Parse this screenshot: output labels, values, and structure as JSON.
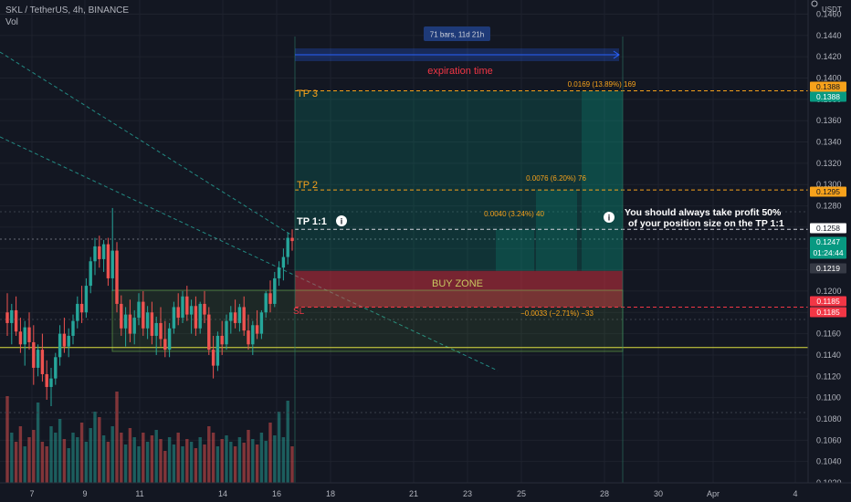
{
  "header": {
    "symbol_line": "SKL / TetherUS, 4h, BINANCE",
    "volume_label": "Vol"
  },
  "price_axis": {
    "currency": "USDT",
    "ticks": [
      "0.1460",
      "0.1440",
      "0.1420",
      "0.1400",
      "0.1380",
      "0.1360",
      "0.1340",
      "0.1320",
      "0.1300",
      "0.1280",
      "0.1260",
      "0.1240",
      "0.1220",
      "0.1200",
      "0.1180",
      "0.1160",
      "0.1140",
      "0.1120",
      "0.1100",
      "0.1080",
      "0.1060",
      "0.1040",
      "0.1020"
    ]
  },
  "price_badges": [
    {
      "value": "0.1388",
      "bg": "#f7a21b",
      "fg": "#131722"
    },
    {
      "value": "0.1388",
      "bg": "#089981",
      "fg": "#ffffff"
    },
    {
      "value": "0.1295",
      "bg": "#f7a21b",
      "fg": "#131722"
    },
    {
      "value": "0.1258",
      "bg": "#ffffff",
      "fg": "#131722"
    },
    {
      "value": "0.1247",
      "sub": "01:24:44",
      "bg": "#089981",
      "fg": "#ffffff"
    },
    {
      "value": "0.1219",
      "bg": "#363a45",
      "fg": "#ffffff"
    },
    {
      "value": "0.1185",
      "bg": "#f23645",
      "fg": "#ffffff"
    },
    {
      "value": "0.1185",
      "bg": "#f23645",
      "fg": "#ffffff"
    }
  ],
  "time_axis": {
    "labels": [
      "7",
      "9",
      "11",
      "14",
      "16",
      "18",
      "21",
      "23",
      "25",
      "28",
      "30",
      "Apr",
      "4"
    ]
  },
  "annotations": {
    "range_label": "71 bars, 11d 21h",
    "expiration": "expiration time",
    "tp3": "TP 3",
    "tp2": "TP 2",
    "tp11": "TP 1:1",
    "buy_zone": "BUY ZONE",
    "sl": "SL",
    "tp3_stat": "0.0169 (13.89%) 169",
    "tp2_stat": "0.0076 (6.20%) 76",
    "tp1_stat": "0.0040 (3.24%) 40",
    "sl_stat": "−0.0033 (−2.71%) −33",
    "note_line1": "You should always take profit 50%",
    "note_line2": "of your position size on the TP 1:1"
  },
  "colors": {
    "up": "#26a69a",
    "down": "#ef5350",
    "accent": "#f7a21b",
    "bg": "#131722"
  },
  "chart_data": {
    "type": "candlestick",
    "instrument": "SKL / TetherUS",
    "timeframe": "4h",
    "exchange": "BINANCE",
    "ylim": [
      0.1005,
      0.1475
    ],
    "candles": [
      {
        "o": 0.118,
        "h": 0.1198,
        "l": 0.1158,
        "c": 0.117
      },
      {
        "o": 0.117,
        "h": 0.1188,
        "l": 0.115,
        "c": 0.1182
      },
      {
        "o": 0.1182,
        "h": 0.1195,
        "l": 0.1158,
        "c": 0.1162
      },
      {
        "o": 0.1162,
        "h": 0.1175,
        "l": 0.1142,
        "c": 0.115
      },
      {
        "o": 0.115,
        "h": 0.1172,
        "l": 0.113,
        "c": 0.1166
      },
      {
        "o": 0.1166,
        "h": 0.118,
        "l": 0.1145,
        "c": 0.1152
      },
      {
        "o": 0.1152,
        "h": 0.1168,
        "l": 0.1112,
        "c": 0.1128
      },
      {
        "o": 0.1128,
        "h": 0.115,
        "l": 0.112,
        "c": 0.1145
      },
      {
        "o": 0.1145,
        "h": 0.116,
        "l": 0.1115,
        "c": 0.1122
      },
      {
        "o": 0.1122,
        "h": 0.1135,
        "l": 0.1098,
        "c": 0.111
      },
      {
        "o": 0.111,
        "h": 0.1128,
        "l": 0.1092,
        "c": 0.1118
      },
      {
        "o": 0.1118,
        "h": 0.1142,
        "l": 0.1112,
        "c": 0.1138
      },
      {
        "o": 0.1138,
        "h": 0.1168,
        "l": 0.113,
        "c": 0.116
      },
      {
        "o": 0.116,
        "h": 0.1175,
        "l": 0.1142,
        "c": 0.1148
      },
      {
        "o": 0.1148,
        "h": 0.1165,
        "l": 0.1138,
        "c": 0.1158
      },
      {
        "o": 0.1158,
        "h": 0.1178,
        "l": 0.115,
        "c": 0.1172
      },
      {
        "o": 0.1172,
        "h": 0.1195,
        "l": 0.1165,
        "c": 0.1188
      },
      {
        "o": 0.1188,
        "h": 0.1205,
        "l": 0.117,
        "c": 0.118
      },
      {
        "o": 0.118,
        "h": 0.1212,
        "l": 0.1175,
        "c": 0.1205
      },
      {
        "o": 0.1205,
        "h": 0.1232,
        "l": 0.1198,
        "c": 0.1228
      },
      {
        "o": 0.1228,
        "h": 0.125,
        "l": 0.1215,
        "c": 0.1242
      },
      {
        "o": 0.1242,
        "h": 0.1252,
        "l": 0.1222,
        "c": 0.123
      },
      {
        "o": 0.123,
        "h": 0.1248,
        "l": 0.1218,
        "c": 0.1244
      },
      {
        "o": 0.1244,
        "h": 0.125,
        "l": 0.1205,
        "c": 0.1212
      },
      {
        "o": 0.1212,
        "h": 0.1278,
        "l": 0.12,
        "c": 0.1238
      },
      {
        "o": 0.1238,
        "h": 0.1246,
        "l": 0.118,
        "c": 0.1188
      },
      {
        "o": 0.1188,
        "h": 0.1196,
        "l": 0.1158,
        "c": 0.1165
      },
      {
        "o": 0.1165,
        "h": 0.1185,
        "l": 0.1148,
        "c": 0.1178
      },
      {
        "o": 0.1178,
        "h": 0.1192,
        "l": 0.1152,
        "c": 0.116
      },
      {
        "o": 0.116,
        "h": 0.1182,
        "l": 0.115,
        "c": 0.1175
      },
      {
        "o": 0.1175,
        "h": 0.1198,
        "l": 0.1168,
        "c": 0.119
      },
      {
        "o": 0.119,
        "h": 0.12,
        "l": 0.1158,
        "c": 0.1165
      },
      {
        "o": 0.1165,
        "h": 0.1186,
        "l": 0.1155,
        "c": 0.118
      },
      {
        "o": 0.118,
        "h": 0.119,
        "l": 0.115,
        "c": 0.1158
      },
      {
        "o": 0.1158,
        "h": 0.1176,
        "l": 0.114,
        "c": 0.117
      },
      {
        "o": 0.117,
        "h": 0.1185,
        "l": 0.1148,
        "c": 0.1155
      },
      {
        "o": 0.1155,
        "h": 0.1172,
        "l": 0.1138,
        "c": 0.1145
      },
      {
        "o": 0.1145,
        "h": 0.117,
        "l": 0.1138,
        "c": 0.1165
      },
      {
        "o": 0.1165,
        "h": 0.119,
        "l": 0.116,
        "c": 0.1185
      },
      {
        "o": 0.1185,
        "h": 0.1198,
        "l": 0.1168,
        "c": 0.1175
      },
      {
        "o": 0.1175,
        "h": 0.12,
        "l": 0.117,
        "c": 0.1195
      },
      {
        "o": 0.1195,
        "h": 0.1205,
        "l": 0.1172,
        "c": 0.1178
      },
      {
        "o": 0.1178,
        "h": 0.1192,
        "l": 0.116,
        "c": 0.1186
      },
      {
        "o": 0.1186,
        "h": 0.1195,
        "l": 0.1158,
        "c": 0.1165
      },
      {
        "o": 0.1165,
        "h": 0.119,
        "l": 0.116,
        "c": 0.1188
      },
      {
        "o": 0.1188,
        "h": 0.12,
        "l": 0.117,
        "c": 0.1178
      },
      {
        "o": 0.1178,
        "h": 0.1185,
        "l": 0.114,
        "c": 0.1145
      },
      {
        "o": 0.1145,
        "h": 0.1158,
        "l": 0.1118,
        "c": 0.113
      },
      {
        "o": 0.113,
        "h": 0.1162,
        "l": 0.1125,
        "c": 0.1158
      },
      {
        "o": 0.1158,
        "h": 0.1172,
        "l": 0.114,
        "c": 0.115
      },
      {
        "o": 0.115,
        "h": 0.1178,
        "l": 0.1145,
        "c": 0.1172
      },
      {
        "o": 0.1172,
        "h": 0.1186,
        "l": 0.116,
        "c": 0.118
      },
      {
        "o": 0.118,
        "h": 0.1192,
        "l": 0.1165,
        "c": 0.117
      },
      {
        "o": 0.117,
        "h": 0.1188,
        "l": 0.1162,
        "c": 0.1185
      },
      {
        "o": 0.1185,
        "h": 0.1195,
        "l": 0.1158,
        "c": 0.1163
      },
      {
        "o": 0.1163,
        "h": 0.1178,
        "l": 0.1145,
        "c": 0.115
      },
      {
        "o": 0.115,
        "h": 0.1172,
        "l": 0.114,
        "c": 0.1168
      },
      {
        "o": 0.1168,
        "h": 0.1182,
        "l": 0.1155,
        "c": 0.116
      },
      {
        "o": 0.116,
        "h": 0.1182,
        "l": 0.1155,
        "c": 0.118
      },
      {
        "o": 0.118,
        "h": 0.12,
        "l": 0.1175,
        "c": 0.1198
      },
      {
        "o": 0.1198,
        "h": 0.121,
        "l": 0.118,
        "c": 0.1188
      },
      {
        "o": 0.1188,
        "h": 0.1218,
        "l": 0.1185,
        "c": 0.1212
      },
      {
        "o": 0.1212,
        "h": 0.1228,
        "l": 0.1205,
        "c": 0.1222
      },
      {
        "o": 0.1222,
        "h": 0.124,
        "l": 0.121,
        "c": 0.1232
      },
      {
        "o": 0.1232,
        "h": 0.1255,
        "l": 0.1225,
        "c": 0.125
      },
      {
        "o": 0.125,
        "h": 0.1258,
        "l": 0.1238,
        "c": 0.1247
      }
    ],
    "volume": [
      0.95,
      0.55,
      0.45,
      0.62,
      0.4,
      0.5,
      0.58,
      0.88,
      0.45,
      0.4,
      0.62,
      0.55,
      0.7,
      0.48,
      0.38,
      0.55,
      0.5,
      0.66,
      0.45,
      0.6,
      0.78,
      0.72,
      0.52,
      0.45,
      0.62,
      1.0,
      0.55,
      0.42,
      0.6,
      0.5,
      0.4,
      0.55,
      0.45,
      0.52,
      0.58,
      0.48,
      0.35,
      0.5,
      0.42,
      0.55,
      0.4,
      0.48,
      0.45,
      0.38,
      0.5,
      0.42,
      0.62,
      0.55,
      0.4,
      0.48,
      0.52,
      0.45,
      0.4,
      0.5,
      0.44,
      0.58,
      0.48,
      0.42,
      0.55,
      0.46,
      0.66,
      0.52,
      0.78,
      0.5,
      0.9,
      0.4
    ],
    "levels": {
      "tp3": 0.1388,
      "tp2": 0.1295,
      "tp11": 0.1258,
      "buy_zone": [
        0.1185,
        0.1219
      ],
      "sl": 0.1152,
      "support": 0.1147
    }
  }
}
